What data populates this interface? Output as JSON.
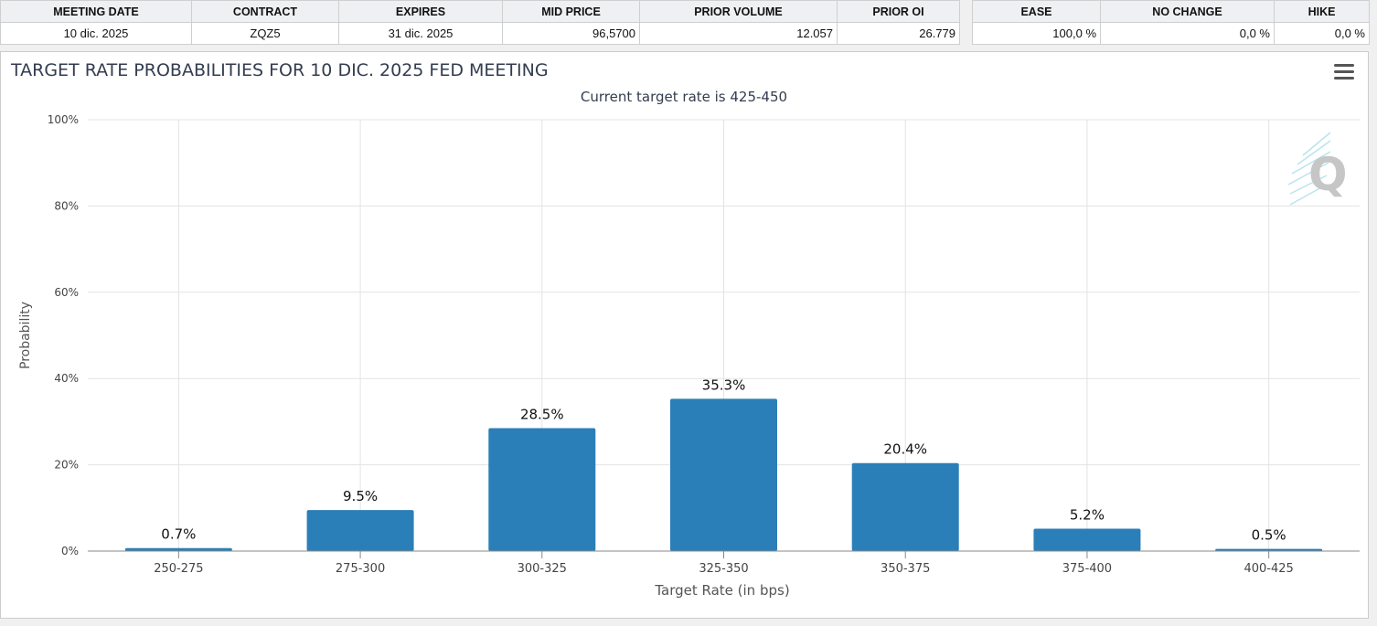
{
  "summary_table": {
    "headers": [
      "MEETING DATE",
      "CONTRACT",
      "EXPIRES",
      "MID PRICE",
      "PRIOR VOLUME",
      "PRIOR OI"
    ],
    "row": [
      "10 dic. 2025",
      "ZQZ5",
      "31 dic. 2025",
      "96,5700",
      "12.057",
      "26.779"
    ]
  },
  "probability_table": {
    "headers": [
      "EASE",
      "NO CHANGE",
      "HIKE"
    ],
    "row": [
      "100,0 %",
      "0,0 %",
      "0,0 %"
    ]
  },
  "colors": {
    "bar": "#2b7fb8",
    "grid": "#e3e3e3",
    "title": "#333d4f",
    "axis": "#888888"
  },
  "icons": {
    "menu": "hamburger-menu-icon",
    "watermark": "q-logo-watermark"
  },
  "chart_data": {
    "type": "bar",
    "title": "TARGET RATE PROBABILITIES FOR 10 DIC. 2025 FED MEETING",
    "subtitle": "Current target rate is 425-450",
    "xlabel": "Target Rate (in bps)",
    "ylabel": "Probability",
    "categories": [
      "250-275",
      "275-300",
      "300-325",
      "325-350",
      "350-375",
      "375-400",
      "400-425"
    ],
    "values": [
      0.7,
      9.5,
      28.5,
      35.3,
      20.4,
      5.2,
      0.5
    ],
    "data_labels": [
      "0.7%",
      "9.5%",
      "28.5%",
      "35.3%",
      "20.4%",
      "5.2%",
      "0.5%"
    ],
    "ylim": [
      0,
      100
    ],
    "yticks": [
      "0%",
      "20%",
      "40%",
      "60%",
      "80%",
      "100%"
    ],
    "ytick_values": [
      0,
      20,
      40,
      60,
      80,
      100
    ],
    "grid": true,
    "legend": "none"
  }
}
